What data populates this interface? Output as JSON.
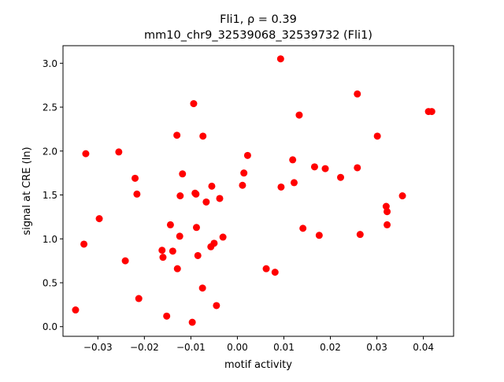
{
  "chart_data": {
    "type": "scatter",
    "title_line1": "Fli1, ρ = 0.39",
    "title_line2": "mm10_chr9_32539068_32539732 (Fli1)",
    "xlabel": "motif activity",
    "ylabel": "signal at CRE (ln)",
    "xlim": [
      -0.0375,
      0.0465
    ],
    "ylim": [
      -0.11,
      3.2
    ],
    "xticks": [
      -0.03,
      -0.02,
      -0.01,
      0.0,
      0.01,
      0.02,
      0.03,
      0.04
    ],
    "xtick_labels": [
      "−0.03",
      "−0.02",
      "−0.01",
      "0.00",
      "0.01",
      "0.02",
      "0.03",
      "0.04"
    ],
    "yticks": [
      0.0,
      0.5,
      1.0,
      1.5,
      2.0,
      2.5,
      3.0
    ],
    "ytick_labels": [
      "0.0",
      "0.5",
      "1.0",
      "1.5",
      "2.0",
      "2.5",
      "3.0"
    ],
    "grid": false,
    "point_color": "#ff0000",
    "points": [
      [
        -0.0348,
        0.19
      ],
      [
        -0.033,
        0.94
      ],
      [
        -0.0326,
        1.97
      ],
      [
        -0.0297,
        1.23
      ],
      [
        -0.0255,
        1.99
      ],
      [
        -0.0241,
        0.75
      ],
      [
        -0.022,
        1.69
      ],
      [
        -0.0216,
        1.51
      ],
      [
        -0.0212,
        0.32
      ],
      [
        -0.0162,
        0.87
      ],
      [
        -0.016,
        0.79
      ],
      [
        -0.0152,
        0.12
      ],
      [
        -0.0144,
        1.16
      ],
      [
        -0.0139,
        0.86
      ],
      [
        -0.013,
        2.18
      ],
      [
        -0.0129,
        0.66
      ],
      [
        -0.0124,
        1.03
      ],
      [
        -0.0123,
        1.49
      ],
      [
        -0.0118,
        1.74
      ],
      [
        -0.0097,
        0.05
      ],
      [
        -0.0094,
        2.54
      ],
      [
        -0.0091,
        1.52
      ],
      [
        -0.0089,
        1.51
      ],
      [
        -0.0088,
        1.13
      ],
      [
        -0.0085,
        0.81
      ],
      [
        -0.0075,
        0.44
      ],
      [
        -0.0074,
        2.17
      ],
      [
        -0.0067,
        1.42
      ],
      [
        -0.0057,
        0.91
      ],
      [
        -0.0055,
        1.6
      ],
      [
        -0.005,
        0.95
      ],
      [
        -0.0045,
        0.24
      ],
      [
        -0.0038,
        1.46
      ],
      [
        -0.0031,
        1.02
      ],
      [
        0.0011,
        1.61
      ],
      [
        0.0014,
        1.75
      ],
      [
        0.0022,
        1.95
      ],
      [
        0.0062,
        0.66
      ],
      [
        0.0081,
        0.62
      ],
      [
        0.0093,
        3.05
      ],
      [
        0.0094,
        1.59
      ],
      [
        0.0119,
        1.9
      ],
      [
        0.0122,
        1.64
      ],
      [
        0.0133,
        2.41
      ],
      [
        0.0141,
        1.12
      ],
      [
        0.0166,
        1.82
      ],
      [
        0.0176,
        1.04
      ],
      [
        0.0189,
        1.8
      ],
      [
        0.0222,
        1.7
      ],
      [
        0.0258,
        2.65
      ],
      [
        0.0258,
        1.81
      ],
      [
        0.0264,
        1.05
      ],
      [
        0.0301,
        2.17
      ],
      [
        0.032,
        1.37
      ],
      [
        0.0322,
        1.31
      ],
      [
        0.0322,
        1.16
      ],
      [
        0.0355,
        1.49
      ],
      [
        0.0411,
        2.45
      ],
      [
        0.0418,
        2.45
      ]
    ]
  }
}
